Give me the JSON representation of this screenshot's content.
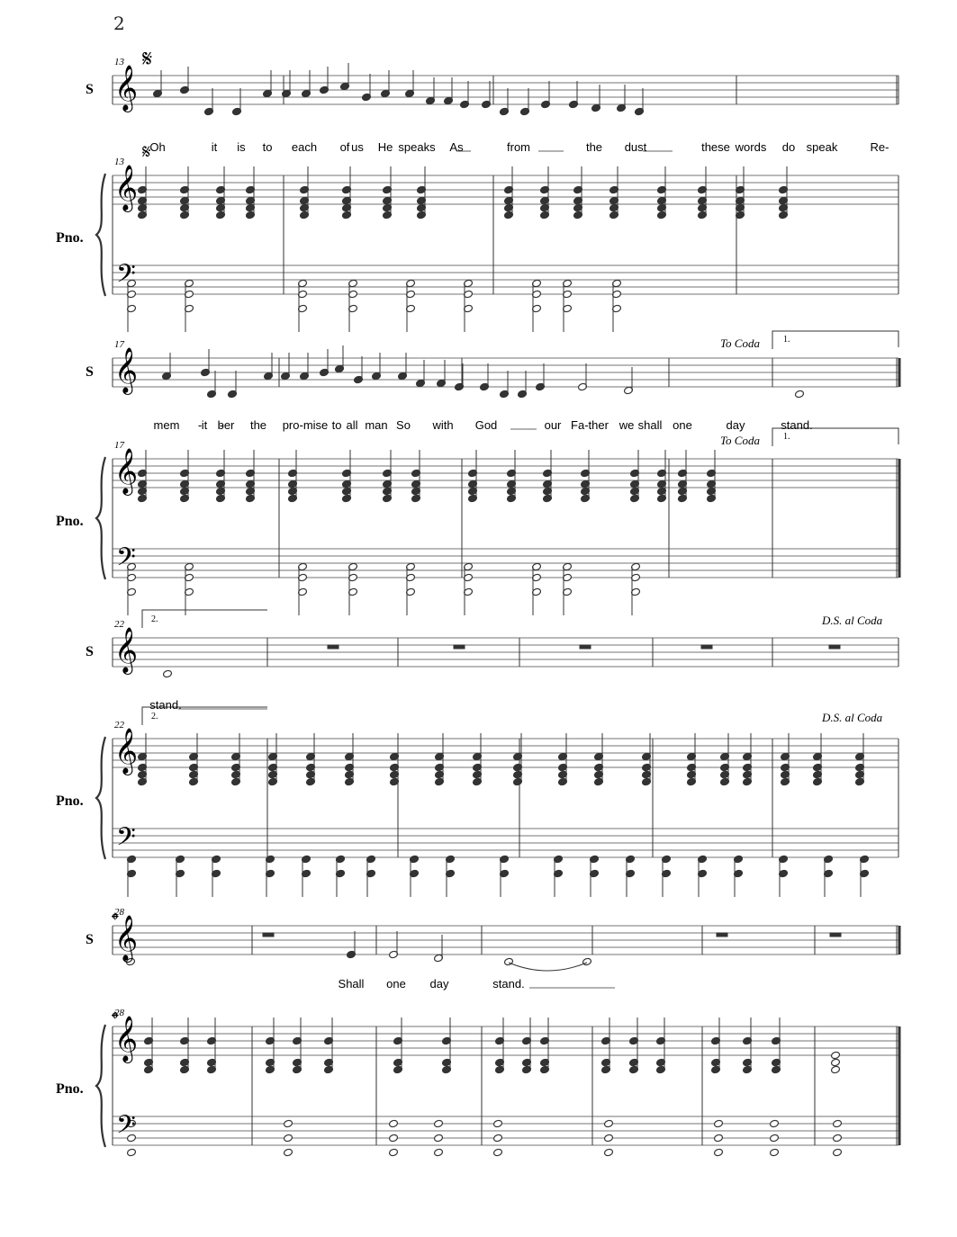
{
  "page_number": "2",
  "labels": {
    "soprano": "S",
    "piano": "Pno."
  },
  "directions": {
    "to_coda": "To Coda",
    "ds_al_coda": "D.S. al Coda",
    "volta1": "1.",
    "volta2": "2."
  },
  "measure_numbers": [
    "13",
    "17",
    "22",
    "28"
  ],
  "lyrics": {
    "system1": [
      "Oh",
      "it",
      "is",
      "to",
      "each",
      "of",
      "us",
      "He",
      "speaks",
      "As",
      "from",
      "the",
      "dust",
      "these",
      "words",
      "do",
      "speak",
      "Re-"
    ],
    "system2": [
      "mem",
      "-",
      "it",
      "-",
      "ber",
      "the",
      "pro-mise",
      "to",
      "all",
      "man",
      "So",
      "with",
      "God",
      "our",
      "Fa-ther",
      "we",
      "shall",
      "one",
      "day",
      "stand."
    ],
    "system3": [
      "stand."
    ],
    "system4": [
      "Shall",
      "one",
      "day",
      "stand."
    ]
  }
}
